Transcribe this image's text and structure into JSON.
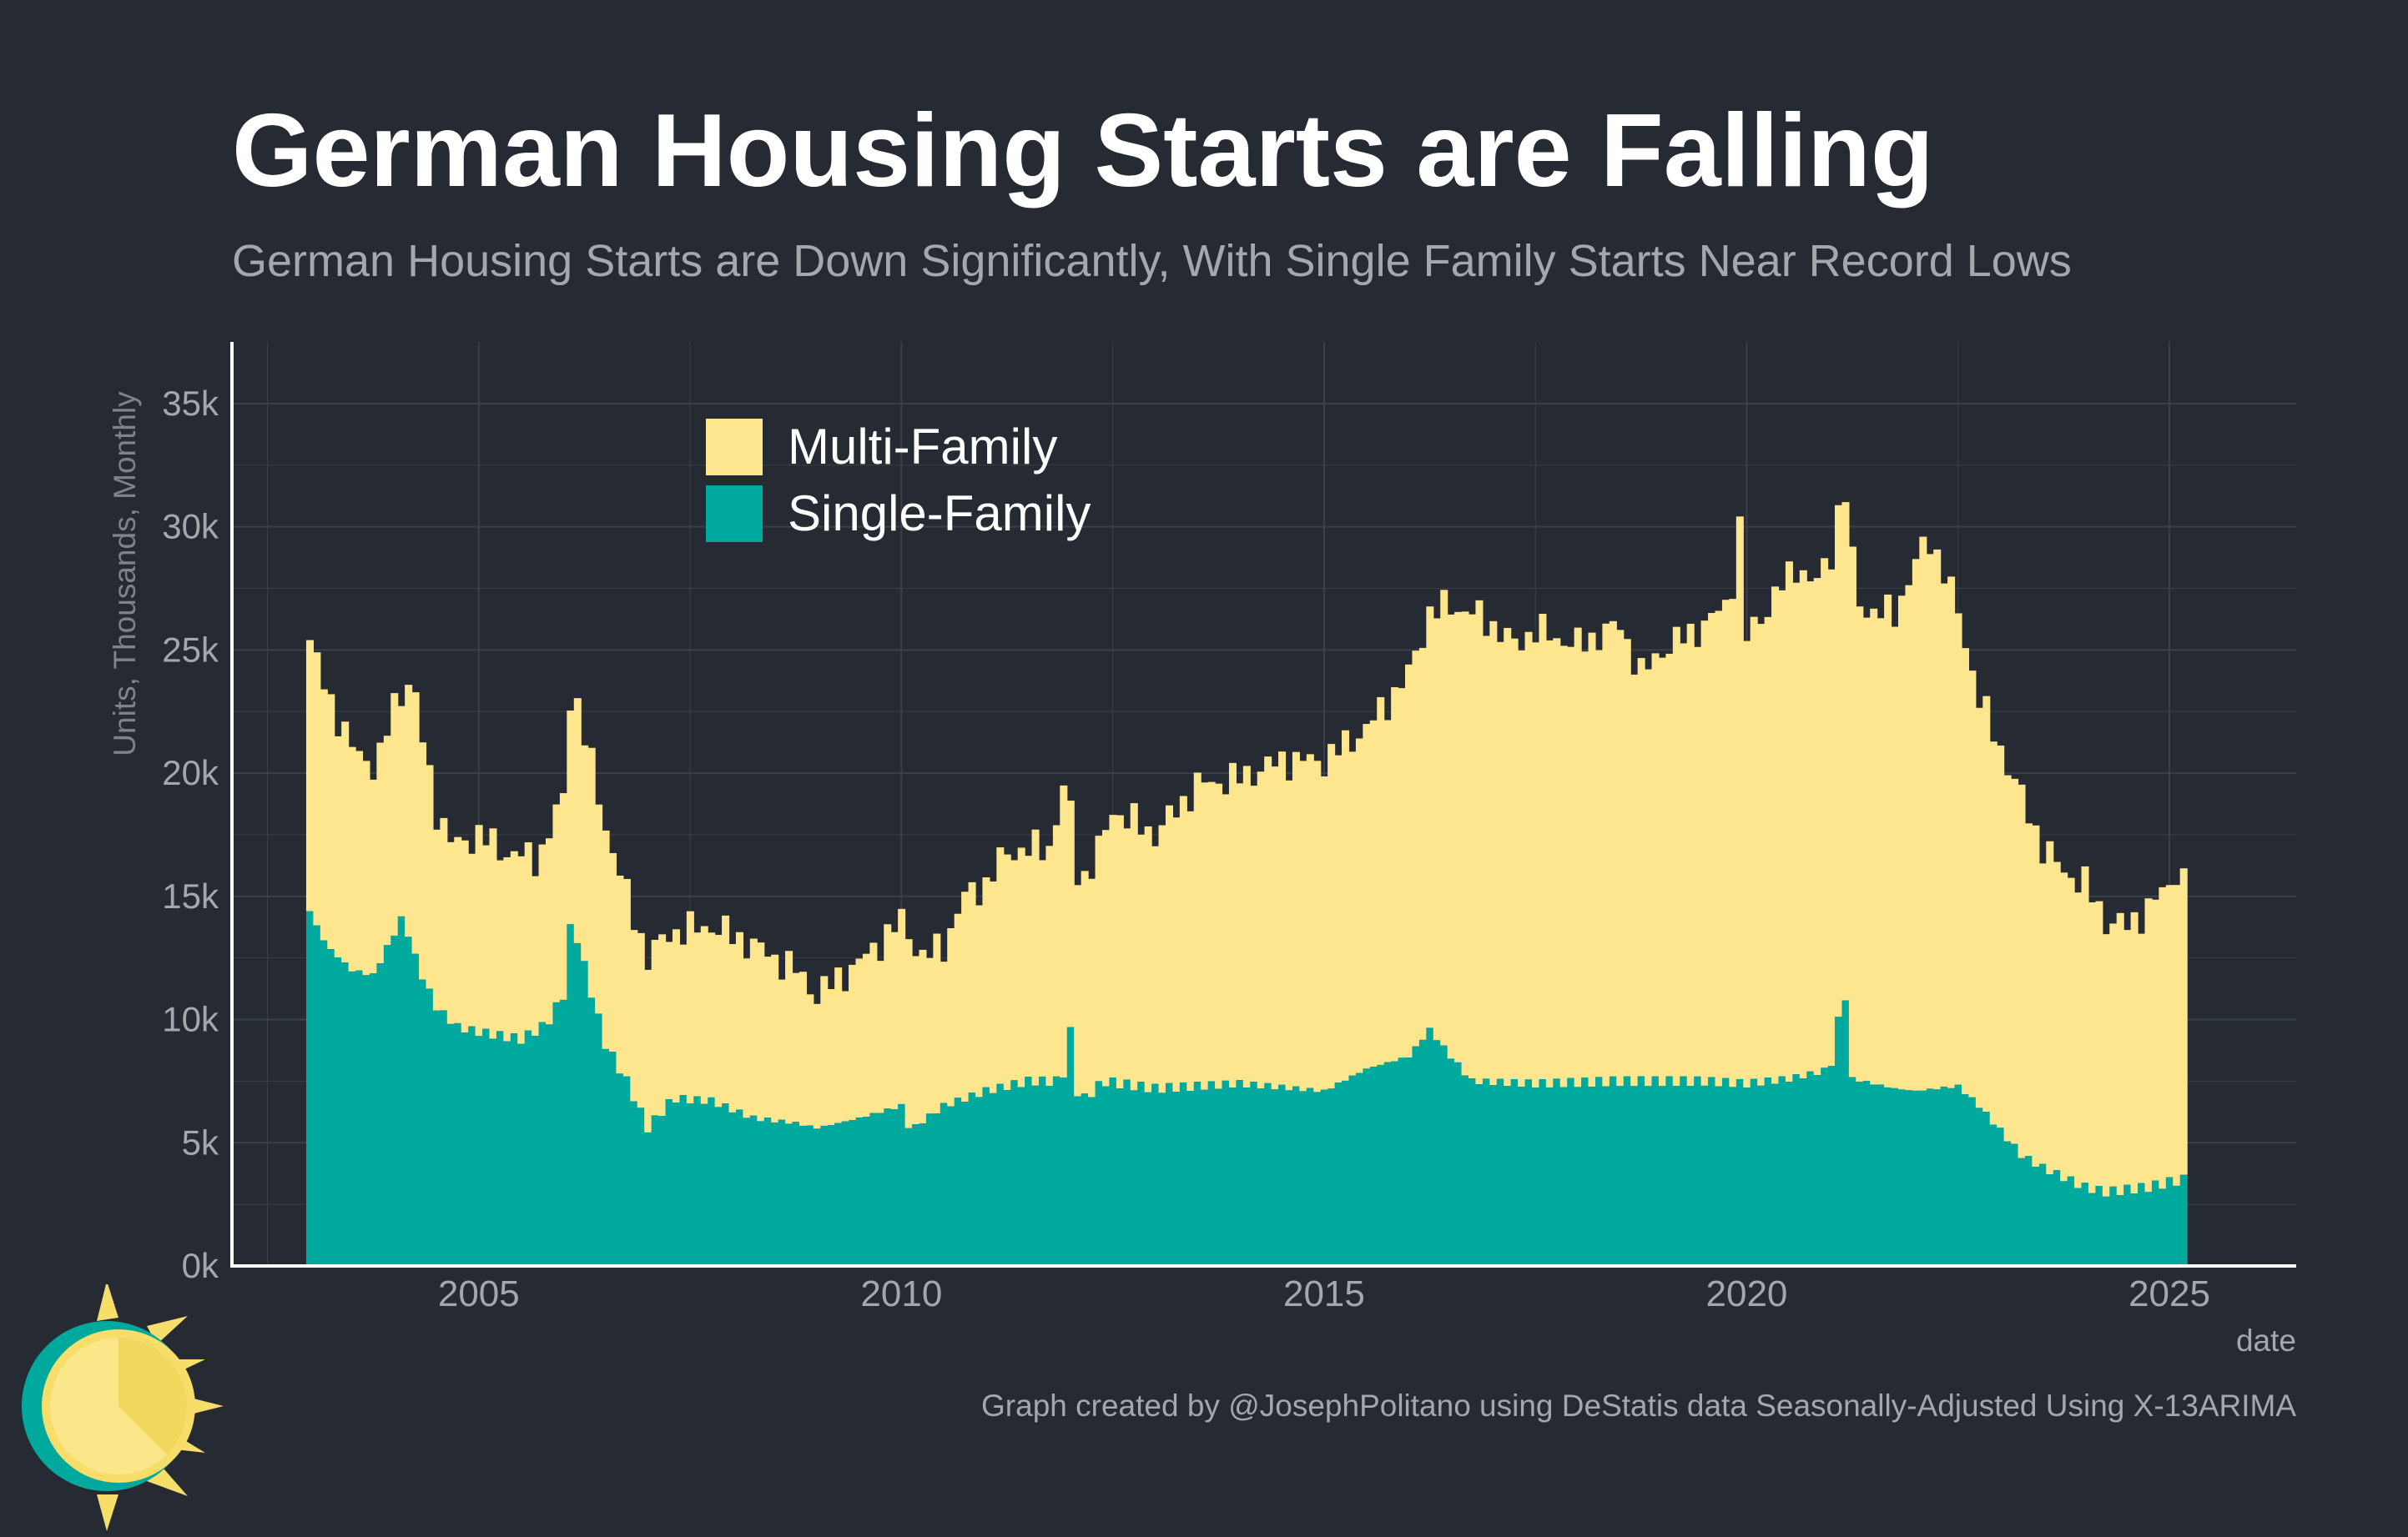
{
  "title": "German Housing Starts are Falling",
  "subtitle": "German Housing Starts are Down Significantly, With Single Family Starts Near Record Lows",
  "caption": "Graph created by @JosephPolitano using DeStatis data Seasonally-Adjusted Using X-13ARIMA",
  "colors": {
    "background": "#252a33",
    "multi_family": "#fde68d",
    "single_family": "#00a99d",
    "grid": "#3c4149",
    "text_muted": "#a3a7ae"
  },
  "chart_data": {
    "type": "bar",
    "stacked": true,
    "title": "German Housing Starts are Falling",
    "subtitle": "German Housing Starts are Down Significantly, With Single Family Starts Near Record Lows",
    "xlabel": "date",
    "ylabel": "Units, Thousands, Monthly",
    "xlim": [
      2002.1,
      2026.5
    ],
    "ylim": [
      0,
      37500
    ],
    "x_ticks": [
      2005,
      2010,
      2015,
      2020,
      2025
    ],
    "x_tick_labels": [
      "2005",
      "2010",
      "2015",
      "2020",
      "2025"
    ],
    "y_ticks": [
      0,
      5000,
      10000,
      15000,
      20000,
      25000,
      30000,
      35000
    ],
    "y_tick_labels": [
      "0k",
      "5k",
      "10k",
      "15k",
      "20k",
      "25k",
      "30k",
      "35k"
    ],
    "grid": true,
    "legend_position": "top-left",
    "legend": [
      "Multi-Family",
      "Single-Family"
    ],
    "series": [
      {
        "name": "Multi-Family",
        "color": "#fde68d",
        "anchors_total": [
          [
            2003.0,
            25400
          ],
          [
            2003.1,
            24200
          ],
          [
            2003.3,
            22500
          ],
          [
            2003.5,
            21000
          ],
          [
            2003.8,
            20200
          ],
          [
            2004.0,
            22800
          ],
          [
            2004.2,
            23900
          ],
          [
            2004.35,
            21000
          ],
          [
            2004.5,
            18500
          ],
          [
            2004.7,
            17000
          ],
          [
            2005.0,
            17500
          ],
          [
            2005.3,
            16800
          ],
          [
            2005.7,
            16500
          ],
          [
            2006.0,
            19000
          ],
          [
            2006.1,
            23900
          ],
          [
            2006.25,
            21500
          ],
          [
            2006.5,
            17800
          ],
          [
            2006.75,
            15000
          ],
          [
            2007.0,
            12500
          ],
          [
            2007.25,
            13500
          ],
          [
            2007.75,
            13800
          ],
          [
            2008.25,
            13000
          ],
          [
            2008.75,
            12000
          ],
          [
            2009.0,
            11000
          ],
          [
            2009.5,
            12300
          ],
          [
            2010.0,
            14000
          ],
          [
            2010.25,
            12500
          ],
          [
            2010.5,
            13000
          ],
          [
            2010.75,
            15000
          ],
          [
            2011.0,
            15500
          ],
          [
            2011.25,
            16800
          ],
          [
            2011.75,
            17000
          ],
          [
            2011.95,
            19800
          ],
          [
            2012.1,
            15500
          ],
          [
            2012.3,
            16500
          ],
          [
            2012.5,
            18500
          ],
          [
            2012.75,
            18000
          ],
          [
            2013.0,
            17500
          ],
          [
            2013.5,
            19500
          ],
          [
            2014.0,
            19800
          ],
          [
            2014.5,
            20500
          ],
          [
            2015.0,
            20500
          ],
          [
            2015.5,
            21800
          ],
          [
            2016.0,
            24000
          ],
          [
            2016.25,
            26500
          ],
          [
            2016.5,
            26800
          ],
          [
            2016.75,
            26500
          ],
          [
            2017.0,
            26000
          ],
          [
            2017.25,
            25200
          ],
          [
            2017.5,
            25800
          ],
          [
            2018.0,
            25200
          ],
          [
            2018.5,
            26000
          ],
          [
            2018.75,
            24000
          ],
          [
            2019.0,
            25000
          ],
          [
            2019.5,
            26000
          ],
          [
            2019.8,
            27000
          ],
          [
            2019.92,
            30000
          ],
          [
            2020.0,
            25500
          ],
          [
            2020.2,
            26500
          ],
          [
            2020.4,
            27500
          ],
          [
            2020.6,
            28500
          ],
          [
            2020.8,
            27500
          ],
          [
            2021.0,
            29000
          ],
          [
            2021.15,
            31800
          ],
          [
            2021.3,
            27000
          ],
          [
            2021.5,
            26500
          ],
          [
            2021.75,
            26500
          ],
          [
            2022.0,
            28500
          ],
          [
            2022.15,
            29600
          ],
          [
            2022.3,
            28500
          ],
          [
            2022.5,
            26500
          ],
          [
            2022.75,
            23000
          ],
          [
            2023.0,
            21000
          ],
          [
            2023.25,
            19000
          ],
          [
            2023.5,
            17000
          ],
          [
            2023.75,
            16000
          ],
          [
            2024.0,
            15500
          ],
          [
            2024.25,
            14000
          ],
          [
            2024.5,
            13800
          ],
          [
            2024.75,
            14500
          ],
          [
            2025.0,
            15500
          ],
          [
            2025.08,
            16100
          ],
          [
            2025.16,
            15600
          ]
        ]
      },
      {
        "name": "Single-Family",
        "color": "#00a99d",
        "anchors": [
          [
            2003.0,
            14400
          ],
          [
            2003.2,
            13000
          ],
          [
            2003.5,
            12000
          ],
          [
            2003.75,
            11800
          ],
          [
            2004.0,
            13500
          ],
          [
            2004.1,
            14200
          ],
          [
            2004.3,
            12000
          ],
          [
            2004.5,
            10500
          ],
          [
            2004.75,
            9700
          ],
          [
            2005.0,
            9500
          ],
          [
            2005.5,
            9200
          ],
          [
            2005.8,
            9800
          ],
          [
            2006.0,
            11000
          ],
          [
            2006.1,
            14200
          ],
          [
            2006.3,
            11500
          ],
          [
            2006.5,
            9000
          ],
          [
            2006.75,
            7500
          ],
          [
            2007.0,
            5600
          ],
          [
            2007.3,
            6800
          ],
          [
            2007.75,
            6700
          ],
          [
            2008.25,
            6000
          ],
          [
            2008.75,
            5800
          ],
          [
            2009.0,
            5600
          ],
          [
            2009.5,
            6000
          ],
          [
            2010.0,
            6500
          ],
          [
            2010.1,
            5500
          ],
          [
            2010.5,
            6500
          ],
          [
            2011.0,
            7100
          ],
          [
            2011.5,
            7500
          ],
          [
            2011.9,
            7500
          ],
          [
            2012.0,
            9500
          ],
          [
            2012.1,
            6600
          ],
          [
            2012.4,
            7500
          ],
          [
            2013.0,
            7200
          ],
          [
            2014.0,
            7400
          ],
          [
            2015.0,
            7100
          ],
          [
            2015.5,
            8000
          ],
          [
            2016.0,
            8500
          ],
          [
            2016.25,
            9600
          ],
          [
            2016.5,
            8500
          ],
          [
            2016.75,
            7500
          ],
          [
            2017.5,
            7400
          ],
          [
            2018.5,
            7500
          ],
          [
            2019.5,
            7500
          ],
          [
            2020.0,
            7400
          ],
          [
            2020.5,
            7600
          ],
          [
            2020.9,
            7900
          ],
          [
            2021.0,
            8200
          ],
          [
            2021.15,
            11500
          ],
          [
            2021.25,
            7600
          ],
          [
            2021.75,
            7200
          ],
          [
            2022.0,
            7100
          ],
          [
            2022.5,
            7300
          ],
          [
            2022.75,
            6500
          ],
          [
            2023.0,
            5500
          ],
          [
            2023.25,
            4500
          ],
          [
            2023.5,
            4000
          ],
          [
            2023.75,
            3600
          ],
          [
            2024.0,
            3200
          ],
          [
            2024.25,
            3000
          ],
          [
            2024.5,
            3100
          ],
          [
            2024.75,
            3200
          ],
          [
            2025.0,
            3400
          ],
          [
            2025.16,
            3500
          ]
        ]
      }
    ]
  }
}
